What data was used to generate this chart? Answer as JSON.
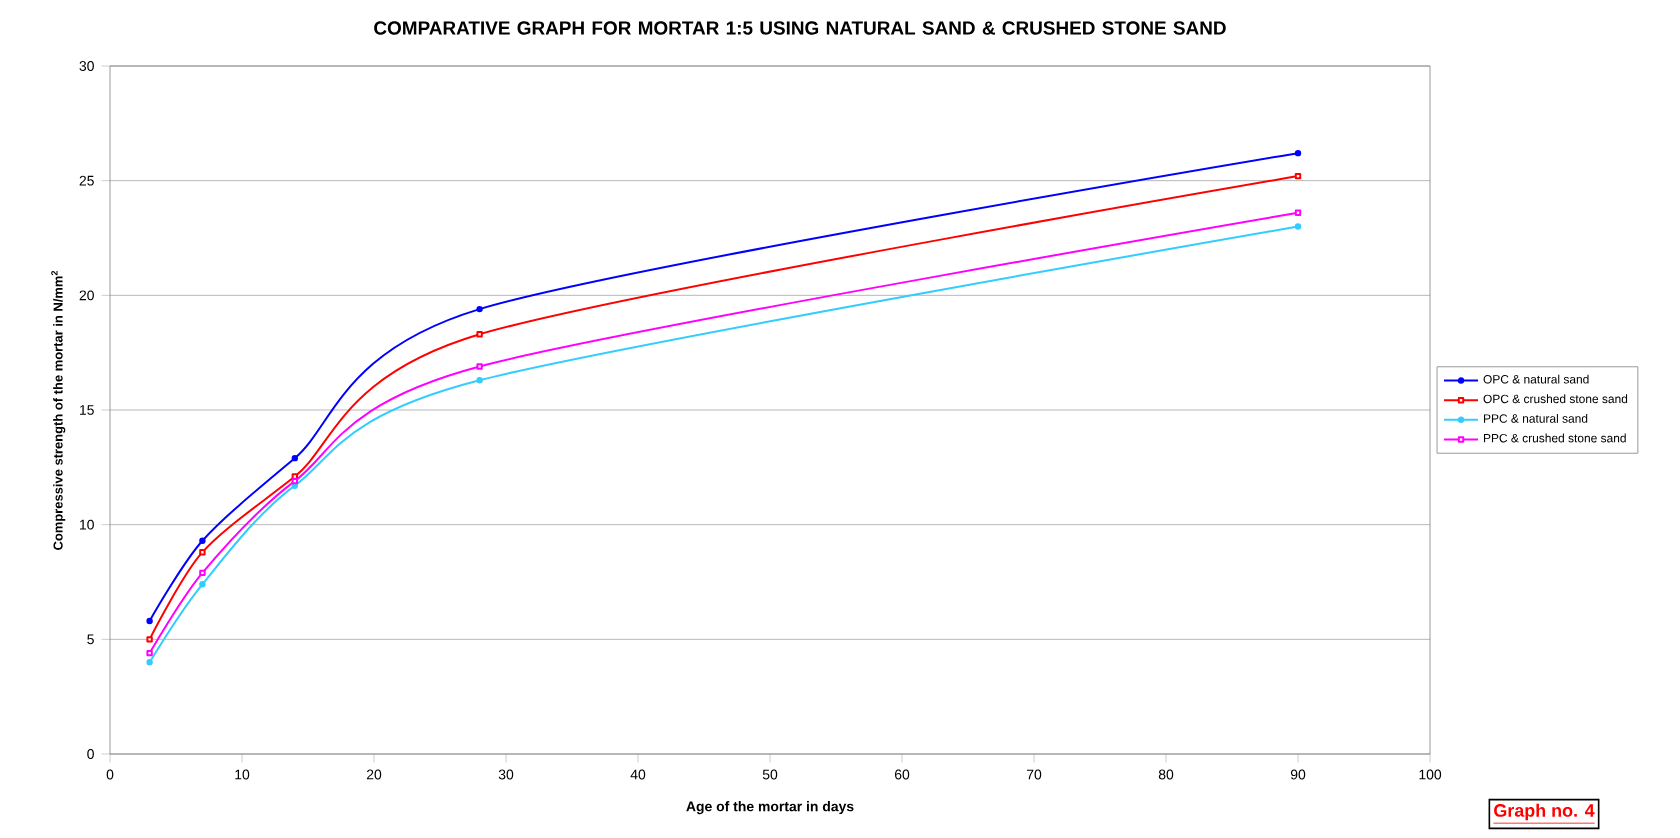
{
  "chart_data": {
    "type": "line",
    "title": "COMPARATIVE GRAPH FOR MORTAR 1:5 USING NATURAL SAND & CRUSHED STONE SAND",
    "xlabel": "Age of the mortar in days",
    "ylabel": "Compressive strength of the mortar in N/mm$^{2}$",
    "x": [
      3,
      7,
      14,
      28,
      90
    ],
    "series": [
      {
        "name": "OPC & natural sand",
        "color": "#0000ff",
        "marker": "circle",
        "values": [
          5.8,
          9.3,
          12.9,
          19.4,
          26.2
        ]
      },
      {
        "name": "OPC & crushed stone sand",
        "color": "#ff0000",
        "marker": "square",
        "values": [
          5.0,
          8.8,
          12.1,
          18.3,
          25.2
        ]
      },
      {
        "name": "PPC & natural sand",
        "color": "#33ccff",
        "marker": "circle",
        "values": [
          4.0,
          7.4,
          11.7,
          16.3,
          23.0
        ]
      },
      {
        "name": "PPC & crushed stone sand",
        "color": "#ff00ff",
        "marker": "square",
        "values": [
          4.4,
          7.9,
          11.9,
          16.9,
          23.6
        ]
      }
    ],
    "xlim": [
      0,
      100
    ],
    "xticks": [
      0,
      10,
      20,
      30,
      40,
      50,
      60,
      70,
      80,
      90,
      100
    ],
    "ylim": [
      0,
      30
    ],
    "yticks": [
      0,
      5,
      10,
      15,
      20,
      25,
      30
    ],
    "grid": "y",
    "legend": "right",
    "line_style": "solid",
    "annotations": [
      "Graph no. 4"
    ]
  }
}
